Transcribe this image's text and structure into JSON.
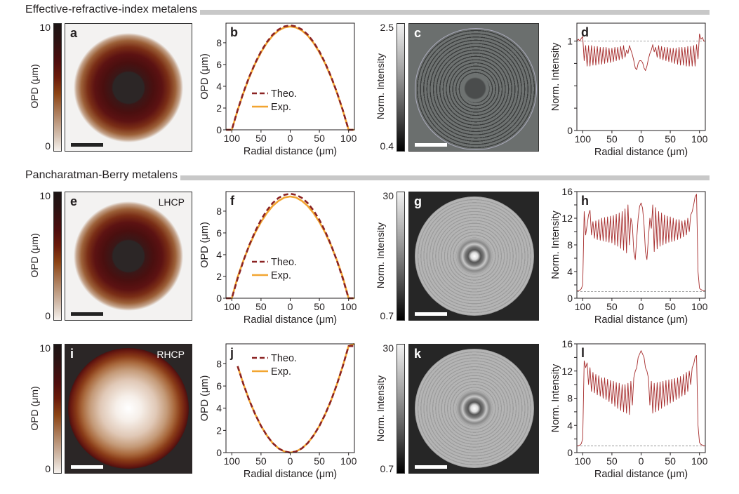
{
  "sections": [
    {
      "title": "Effective-refractive-index metalens"
    },
    {
      "title": "Pancharatman-Berry metalens"
    }
  ],
  "panels": {
    "a": {
      "letter": "a",
      "colorbar": {
        "max": "10",
        "min": "0",
        "label": "OPD (μm)"
      }
    },
    "c": {
      "letter": "c",
      "colorbar": {
        "max": "2.5",
        "min": "0.4",
        "label": "Norm. Intensity"
      }
    },
    "e": {
      "letter": "e",
      "polarization": "LHCP",
      "colorbar": {
        "max": "10",
        "min": "0",
        "label": "OPD (μm)"
      }
    },
    "g": {
      "letter": "g",
      "colorbar": {
        "max": "30",
        "min": "0.7",
        "label": "Norm. Intensity"
      }
    },
    "i": {
      "letter": "i",
      "polarization": "RHCP",
      "colorbar": {
        "max": "10",
        "min": "0",
        "label": "OPD (μm)"
      }
    },
    "k": {
      "letter": "k",
      "colorbar": {
        "max": "30",
        "min": "0.7",
        "label": "Norm. Intensity"
      }
    }
  },
  "colors": {
    "theo": "#8b2323",
    "exp": "#f2a531",
    "profile": "#a52a2a",
    "reference": "#888888"
  },
  "chart_data": [
    {
      "id": "b",
      "letter": "b",
      "type": "line",
      "xlabel": "Radial distance (μm)",
      "ylabel": "OPD (μm)",
      "xlim": [
        -110,
        110
      ],
      "ylim": [
        0,
        9.8
      ],
      "xticks": [
        -100,
        -50,
        0,
        50,
        100
      ],
      "xtick_labels": [
        "100",
        "50",
        "0",
        "50",
        "100"
      ],
      "yticks": [
        0,
        2,
        4,
        6,
        8
      ],
      "ytick_labels": [
        "0",
        "2",
        "4",
        "6",
        "8"
      ],
      "legend": "bottom-center",
      "x": [
        -110,
        -100,
        -90,
        -80,
        -70,
        -60,
        -50,
        -40,
        -30,
        -20,
        -10,
        0,
        10,
        20,
        30,
        40,
        50,
        60,
        70,
        80,
        90,
        100,
        110
      ],
      "series": [
        {
          "name": "Exp.",
          "style": "solid",
          "values": [
            0,
            0,
            1.8,
            3.42,
            4.85,
            6.08,
            7.12,
            7.98,
            8.65,
            9.12,
            9.4,
            9.5,
            9.4,
            9.12,
            8.65,
            7.98,
            7.12,
            6.08,
            4.85,
            3.42,
            1.8,
            0,
            0
          ]
        },
        {
          "name": "Theo.",
          "style": "dashed",
          "values": [
            0,
            0,
            1.82,
            3.46,
            4.9,
            6.14,
            7.2,
            8.06,
            8.74,
            9.22,
            9.5,
            9.6,
            9.5,
            9.22,
            8.74,
            8.06,
            7.2,
            6.14,
            4.9,
            3.46,
            1.82,
            0,
            0
          ]
        }
      ]
    },
    {
      "id": "d",
      "letter": "d",
      "type": "line",
      "xlabel": "Radial distance (μm)",
      "ylabel": "Norm. Intensity",
      "xlim": [
        -110,
        110
      ],
      "ylim": [
        0,
        1.2
      ],
      "xticks": [
        -100,
        -50,
        0,
        50,
        100
      ],
      "xtick_labels": [
        "100",
        "50",
        "0",
        "50",
        "100"
      ],
      "yticks": [
        0,
        0.25,
        0.5,
        0.75,
        1
      ],
      "ytick_labels": [
        "0",
        "",
        "",
        "",
        "1"
      ],
      "reference_line": 1,
      "x": [
        -110,
        -107.5,
        -105,
        -102.5,
        -100,
        -97.5,
        -95,
        -92.5,
        -90,
        -87.5,
        -85,
        -82.5,
        -80,
        -77.5,
        -75,
        -72.5,
        -70,
        -67.5,
        -65,
        -62.5,
        -60,
        -57.5,
        -55,
        -52.5,
        -50,
        -47.5,
        -45,
        -42.5,
        -40,
        -37.5,
        -35,
        -32.5,
        -30,
        -27.5,
        -25,
        -22.5,
        -20,
        -17.5,
        -15,
        -12.5,
        -10,
        -7.5,
        -5,
        -2.5,
        0,
        2.5,
        5,
        7.5,
        10,
        12.5,
        15,
        17.5,
        20,
        22.5,
        25,
        27.5,
        30,
        32.5,
        35,
        37.5,
        40,
        42.5,
        45,
        47.5,
        50,
        52.5,
        55,
        57.5,
        60,
        62.5,
        65,
        67.5,
        70,
        72.5,
        75,
        77.5,
        80,
        82.5,
        85,
        87.5,
        90,
        92.5,
        95,
        97.5,
        100,
        102.5,
        105,
        107.5,
        110
      ],
      "series": [
        {
          "values": [
            1.0,
            1.02,
            1.0,
            1.03,
            1.05,
            0.78,
            0.95,
            0.72,
            0.95,
            0.72,
            0.95,
            0.73,
            0.94,
            0.73,
            0.94,
            0.74,
            0.93,
            0.74,
            0.93,
            0.75,
            0.93,
            0.76,
            0.92,
            0.76,
            0.92,
            0.77,
            0.93,
            0.78,
            0.93,
            0.79,
            0.94,
            0.8,
            0.95,
            0.82,
            0.9,
            0.86,
            0.95,
            0.9,
            0.85,
            0.78,
            0.7,
            0.68,
            0.75,
            0.78,
            0.78,
            0.76,
            0.7,
            0.67,
            0.72,
            0.8,
            0.86,
            0.9,
            0.96,
            0.88,
            0.93,
            0.82,
            0.95,
            0.8,
            0.94,
            0.79,
            0.93,
            0.78,
            0.93,
            0.77,
            0.92,
            0.76,
            0.92,
            0.75,
            0.92,
            0.74,
            0.93,
            0.73,
            0.93,
            0.73,
            0.93,
            0.72,
            0.94,
            0.72,
            0.94,
            0.72,
            0.95,
            0.72,
            0.96,
            0.8,
            1.08,
            1.02,
            1.04,
            1.0,
            1.0
          ]
        }
      ]
    },
    {
      "id": "f",
      "letter": "f",
      "type": "line",
      "xlabel": "Radial distance (μm)",
      "ylabel": "OPD (μm)",
      "xlim": [
        -110,
        110
      ],
      "ylim": [
        0,
        9.8
      ],
      "xticks": [
        -100,
        -50,
        0,
        50,
        100
      ],
      "xtick_labels": [
        "100",
        "50",
        "0",
        "50",
        "100"
      ],
      "yticks": [
        0,
        2,
        4,
        6,
        8
      ],
      "ytick_labels": [
        "0",
        "2",
        "4",
        "6",
        "8"
      ],
      "legend": "bottom-center",
      "x": [
        -110,
        -100,
        -90,
        -80,
        -70,
        -60,
        -50,
        -40,
        -30,
        -20,
        -10,
        0,
        10,
        20,
        30,
        40,
        50,
        60,
        70,
        80,
        90,
        100,
        110
      ],
      "series": [
        {
          "name": "Exp.",
          "style": "solid",
          "values": [
            0,
            0,
            1.95,
            3.5,
            4.85,
            6.02,
            7.0,
            7.82,
            8.48,
            8.95,
            9.25,
            9.35,
            9.25,
            8.95,
            8.48,
            7.82,
            7.0,
            6.02,
            4.85,
            3.5,
            1.95,
            0,
            0
          ]
        },
        {
          "name": "Theo.",
          "style": "dashed",
          "values": [
            0,
            0,
            1.82,
            3.46,
            4.9,
            6.14,
            7.2,
            8.06,
            8.74,
            9.22,
            9.5,
            9.6,
            9.5,
            9.22,
            8.74,
            8.06,
            7.2,
            6.14,
            4.9,
            3.46,
            1.82,
            0,
            0
          ]
        }
      ]
    },
    {
      "id": "h",
      "letter": "h",
      "type": "line",
      "xlabel": "Radial distance (μm)",
      "ylabel": "Norm. Intensity",
      "xlim": [
        -110,
        110
      ],
      "ylim": [
        0,
        16
      ],
      "xticks": [
        -100,
        -50,
        0,
        50,
        100
      ],
      "xtick_labels": [
        "100",
        "50",
        "0",
        "50",
        "100"
      ],
      "yticks": [
        0,
        2,
        4,
        6,
        8,
        10,
        12,
        14,
        16
      ],
      "ytick_labels": [
        "0",
        "",
        "4",
        "",
        "8",
        "",
        "12",
        "",
        "16"
      ],
      "reference_line": 1,
      "x": [
        -110,
        -107.5,
        -105,
        -102.5,
        -100,
        -97.5,
        -95,
        -92.5,
        -90,
        -87.5,
        -85,
        -82.5,
        -80,
        -77.5,
        -75,
        -72.5,
        -70,
        -67.5,
        -65,
        -62.5,
        -60,
        -57.5,
        -55,
        -52.5,
        -50,
        -47.5,
        -45,
        -42.5,
        -40,
        -37.5,
        -35,
        -32.5,
        -30,
        -27.5,
        -25,
        -22.5,
        -20,
        -17.5,
        -15,
        -12.5,
        -10,
        -7.5,
        -5,
        -2.5,
        0,
        2.5,
        5,
        7.5,
        10,
        12.5,
        15,
        17.5,
        20,
        22.5,
        25,
        27.5,
        30,
        32.5,
        35,
        37.5,
        40,
        42.5,
        45,
        47.5,
        50,
        52.5,
        55,
        57.5,
        60,
        62.5,
        65,
        67.5,
        70,
        72.5,
        75,
        77.5,
        80,
        82.5,
        85,
        87.5,
        90,
        92.5,
        95,
        97.5,
        100,
        102.5,
        105,
        107.5,
        110
      ],
      "series": [
        {
          "values": [
            1.1,
            1.1,
            1.2,
            1.4,
            2,
            13,
            9.5,
            11,
            12.5,
            13.2,
            9.5,
            11.5,
            9,
            11.6,
            8.8,
            11.8,
            8.7,
            12,
            8.6,
            12.1,
            8.5,
            12.2,
            8.4,
            12.3,
            8.3,
            12.4,
            8,
            12.6,
            7.8,
            12.8,
            7.5,
            13,
            7.2,
            13.4,
            6.8,
            14,
            8,
            12,
            11,
            7,
            5.8,
            9,
            12,
            13.8,
            14.3,
            13.5,
            11,
            7,
            5.8,
            9,
            12,
            10.5,
            14,
            7,
            13.6,
            7.4,
            13,
            7.8,
            12.8,
            8,
            12.5,
            8.2,
            12.3,
            8.4,
            12.2,
            8.5,
            12,
            8.6,
            11.8,
            8.8,
            11.8,
            9,
            11.6,
            9.2,
            11.7,
            9.5,
            12,
            10,
            12.5,
            13,
            14,
            15.2,
            15.6,
            4,
            1.5,
            1.3,
            1.2,
            1.1,
            1.1
          ]
        }
      ]
    },
    {
      "id": "j",
      "letter": "j",
      "type": "line",
      "xlabel": "Radial distance (μm)",
      "ylabel": "OPD (μm)",
      "xlim": [
        -110,
        110
      ],
      "ylim": [
        0,
        9.8
      ],
      "xticks": [
        -100,
        -50,
        0,
        50,
        100
      ],
      "xtick_labels": [
        "100",
        "50",
        "0",
        "50",
        "100"
      ],
      "yticks": [
        0,
        2,
        4,
        6,
        8
      ],
      "ytick_labels": [
        "0",
        "2",
        "4",
        "6",
        "8"
      ],
      "legend": "top-center",
      "x": [
        -110,
        -100,
        -90,
        -80,
        -70,
        -60,
        -50,
        -40,
        -30,
        -20,
        -10,
        0,
        10,
        20,
        30,
        40,
        50,
        60,
        70,
        80,
        90,
        100,
        110
      ],
      "series": [
        {
          "name": "Exp.",
          "style": "solid",
          "values": [
            null,
            null,
            7.78,
            6.14,
            4.7,
            3.46,
            2.4,
            1.54,
            0.86,
            0.38,
            0.1,
            0,
            0.1,
            0.38,
            0.86,
            1.54,
            2.4,
            3.46,
            4.7,
            6.14,
            7.78,
            9.6,
            9.8
          ]
        },
        {
          "name": "Theo.",
          "style": "dashed",
          "values": [
            null,
            null,
            7.78,
            6.14,
            4.7,
            3.46,
            2.4,
            1.54,
            0.86,
            0.38,
            0.1,
            0,
            0.1,
            0.38,
            0.86,
            1.54,
            2.4,
            3.46,
            4.7,
            6.14,
            7.78,
            9.6,
            9.6
          ]
        }
      ]
    },
    {
      "id": "l",
      "letter": "l",
      "type": "line",
      "xlabel": "Radial distance (μm)",
      "ylabel": "Norm. Intensity",
      "xlim": [
        -110,
        110
      ],
      "ylim": [
        0,
        16
      ],
      "xticks": [
        -100,
        -50,
        0,
        50,
        100
      ],
      "xtick_labels": [
        "100",
        "50",
        "0",
        "50",
        "100"
      ],
      "yticks": [
        0,
        2,
        4,
        6,
        8,
        10,
        12,
        14,
        16
      ],
      "ytick_labels": [
        "0",
        "",
        "4",
        "",
        "8",
        "",
        "12",
        "",
        "16"
      ],
      "reference_line": 1,
      "x": [
        -110,
        -107.5,
        -105,
        -102.5,
        -100,
        -97.5,
        -95,
        -92.5,
        -90,
        -87.5,
        -85,
        -82.5,
        -80,
        -77.5,
        -75,
        -72.5,
        -70,
        -67.5,
        -65,
        -62.5,
        -60,
        -57.5,
        -55,
        -52.5,
        -50,
        -47.5,
        -45,
        -42.5,
        -40,
        -37.5,
        -35,
        -32.5,
        -30,
        -27.5,
        -25,
        -22.5,
        -20,
        -17.5,
        -15,
        -12.5,
        -10,
        -7.5,
        -5,
        -2.5,
        0,
        2.5,
        5,
        7.5,
        10,
        12.5,
        15,
        17.5,
        20,
        22.5,
        25,
        27.5,
        30,
        32.5,
        35,
        37.5,
        40,
        42.5,
        45,
        47.5,
        50,
        52.5,
        55,
        57.5,
        60,
        62.5,
        65,
        67.5,
        70,
        72.5,
        75,
        77.5,
        80,
        82.5,
        85,
        87.5,
        90,
        92.5,
        95,
        97.5,
        100,
        102.5,
        105,
        107.5,
        110
      ],
      "series": [
        {
          "values": [
            1.0,
            1.0,
            1.1,
            1.3,
            2,
            13.5,
            12.5,
            13.2,
            10,
            12.5,
            9,
            11.8,
            8.8,
            11.5,
            8.5,
            11.3,
            8.3,
            11,
            8,
            11,
            7.8,
            10.8,
            7.5,
            10.6,
            7.2,
            10.5,
            6.8,
            10.3,
            6.5,
            10.2,
            6.2,
            10,
            6,
            10,
            5.8,
            10.2,
            5.6,
            10.5,
            7,
            11,
            12,
            12.5,
            14,
            14.5,
            15,
            14.5,
            14,
            12.5,
            12,
            11,
            7,
            10.5,
            5.8,
            10.2,
            6,
            10.3,
            6.2,
            10.4,
            6.5,
            10.5,
            6.8,
            10.6,
            7,
            10.7,
            7.3,
            10.8,
            7.5,
            10.9,
            7.8,
            11,
            8,
            11.2,
            8.3,
            11.5,
            8.5,
            11.8,
            9,
            12,
            10,
            12.5,
            13,
            14,
            14.3,
            4,
            1.5,
            1.2,
            1.1,
            1.0,
            1.0
          ]
        }
      ]
    }
  ]
}
